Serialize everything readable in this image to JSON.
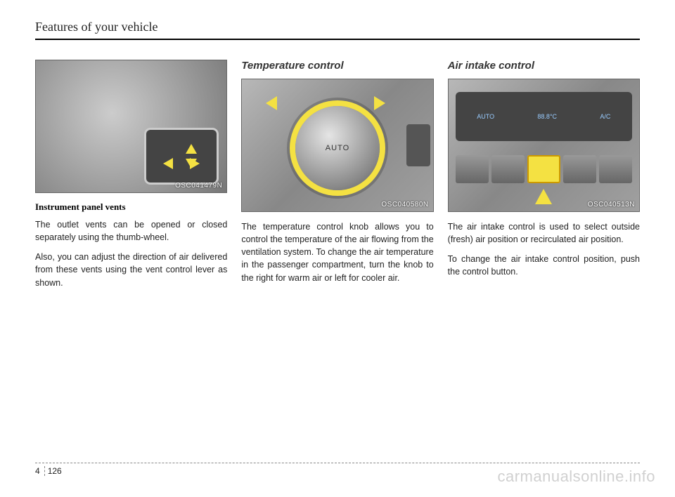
{
  "header": {
    "title": "Features of your vehicle"
  },
  "col1": {
    "figure_label": "OSC041479N",
    "caption": "Instrument panel vents",
    "p1": "The outlet vents can be opened or closed separately using the thumb-wheel.",
    "p2": "Also, you can adjust the direction of air delivered from these vents using the vent control lever as shown."
  },
  "col2": {
    "heading": "Temperature control",
    "figure_label": "OSC040580N",
    "knob_label": "AUTO",
    "p1": "The temperature control knob allows you to control the temperature of the air flowing from the ventilation system. To change the air temperature in the passenger compartment, turn the knob to the right for warm air or left for cooler air."
  },
  "col3": {
    "heading": "Air intake control",
    "figure_label": "OSC040513N",
    "panel": {
      "auto": "AUTO",
      "temp": "88.8°C",
      "ac": "A/C"
    },
    "p1": "The air intake control is used to select outside (fresh) air position or recirculated air position.",
    "p2": "To change the air intake control position, push the control button."
  },
  "footer": {
    "section": "4",
    "page": "126"
  },
  "watermark": "carmanualsonline.info",
  "colors": {
    "highlight": "#f4e142",
    "text": "#222222",
    "rule": "#000000",
    "figure_bg": "#9a9a9a"
  }
}
